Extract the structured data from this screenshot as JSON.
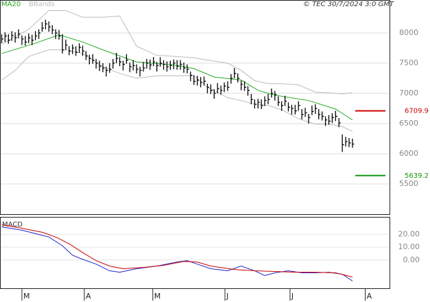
{
  "chart_data": [
    {
      "type": "ohlc",
      "legend_position": "top left",
      "copyright": "© TEC 30/7/2024 3:0 GMT",
      "xlim": [
        -0.5,
        115
      ],
      "ylim": [
        5000,
        8500
      ],
      "yticks": [
        5500,
        6000,
        6500,
        7000,
        7500,
        8000
      ],
      "grid": true,
      "bars": {
        "color": "#000000",
        "high": [
          7980,
          8010,
          7980,
          8030,
          8010,
          8060,
          7960,
          7950,
          7990,
          7970,
          8030,
          8060,
          8180,
          8220,
          8190,
          8130,
          8060,
          8050,
          7980,
          7890,
          7780,
          7810,
          7780,
          7830,
          7790,
          7700,
          7640,
          7650,
          7570,
          7540,
          7500,
          7440,
          7500,
          7570,
          7670,
          7600,
          7540,
          7650,
          7510,
          7550,
          7480,
          7440,
          7520,
          7570,
          7560,
          7600,
          7520,
          7600,
          7550,
          7530,
          7540,
          7560,
          7550,
          7550,
          7510,
          7480,
          7360,
          7300,
          7290,
          7270,
          7280,
          7160,
          7150,
          7070,
          7170,
          7130,
          7180,
          7200,
          7320,
          7420,
          7330,
          7210,
          7200,
          7120,
          6990,
          6900,
          6910,
          6900,
          6950,
          6990,
          7080,
          7040,
          6950,
          6870,
          6960,
          6850,
          6810,
          6810,
          6870,
          6740,
          6760,
          6660,
          6800,
          6820,
          6740,
          6700,
          6620,
          6640,
          6670,
          6710,
          6590,
          6320,
          6280,
          6260,
          6250
        ],
        "low": [
          7830,
          7850,
          7820,
          7870,
          7840,
          7910,
          7800,
          7790,
          7830,
          7800,
          7880,
          7900,
          8020,
          8060,
          8020,
          7980,
          7900,
          7890,
          7660,
          7720,
          7630,
          7650,
          7620,
          7670,
          7620,
          7550,
          7480,
          7490,
          7410,
          7370,
          7350,
          7280,
          7340,
          7410,
          7500,
          7450,
          7380,
          7490,
          7350,
          7380,
          7330,
          7280,
          7360,
          7410,
          7390,
          7450,
          7360,
          7440,
          7390,
          7360,
          7390,
          7400,
          7390,
          7390,
          7340,
          7330,
          7200,
          7140,
          7130,
          7100,
          7130,
          7000,
          6990,
          6910,
          7000,
          6980,
          7020,
          7040,
          7160,
          7250,
          7180,
          7050,
          7040,
          6960,
          6820,
          6750,
          6750,
          6740,
          6790,
          6820,
          6930,
          6880,
          6790,
          6710,
          6790,
          6700,
          6650,
          6650,
          6710,
          6570,
          6610,
          6500,
          6640,
          6660,
          6570,
          6550,
          6460,
          6480,
          6510,
          6540,
          6440,
          6030,
          6120,
          6110,
          6100
        ],
        "close": [
          7900,
          7950,
          7880,
          7960,
          7920,
          7980,
          7900,
          7850,
          7920,
          7880,
          7950,
          8000,
          8080,
          8150,
          8100,
          8050,
          8000,
          7950,
          7720,
          7800,
          7700,
          7750,
          7680,
          7760,
          7700,
          7620,
          7580,
          7550,
          7500,
          7450,
          7420,
          7380,
          7400,
          7500,
          7580,
          7520,
          7480,
          7550,
          7440,
          7460,
          7400,
          7380,
          7420,
          7500,
          7470,
          7520,
          7460,
          7500,
          7480,
          7440,
          7460,
          7500,
          7450,
          7480,
          7420,
          7400,
          7300,
          7200,
          7220,
          7180,
          7200,
          7100,
          7050,
          7000,
          7080,
          7050,
          7120,
          7100,
          7250,
          7330,
          7250,
          7150,
          7100,
          7050,
          6900,
          6820,
          6850,
          6800,
          6880,
          6900,
          7000,
          6980,
          6850,
          6800,
          6870,
          6770,
          6750,
          6710,
          6800,
          6650,
          6680,
          6600,
          6700,
          6750,
          6650,
          6620,
          6560,
          6540,
          6600,
          6620,
          6510,
          6150,
          6200,
          6180,
          6160
        ]
      },
      "series": [
        {
          "name": "MA20",
          "color": "#22aa22",
          "x": [
            0,
            10,
            17,
            24,
            30,
            40,
            51,
            57,
            63,
            71,
            76,
            81,
            91,
            99,
            104
          ],
          "values": [
            7660,
            7830,
            7970,
            7850,
            7720,
            7520,
            7470,
            7410,
            7270,
            7220,
            7050,
            6970,
            6880,
            6740,
            6560
          ]
        },
        {
          "name": "BBands",
          "color": "#bbbbbb",
          "x": [
            0,
            4,
            8,
            14,
            19,
            24,
            30,
            35,
            40,
            46,
            52,
            57,
            61,
            67,
            71,
            75,
            79,
            83,
            88,
            93,
            97,
            101,
            104
          ],
          "upper": [
            7810,
            7940,
            8060,
            8370,
            8370,
            8260,
            8260,
            8280,
            7780,
            7630,
            7610,
            7590,
            7550,
            7500,
            7380,
            7210,
            7160,
            7160,
            7140,
            7020,
            7010,
            6990,
            7010
          ],
          "lower": [
            7220,
            7380,
            7610,
            7720,
            7720,
            7660,
            7440,
            7330,
            7250,
            7290,
            7290,
            7290,
            7100,
            6930,
            6880,
            6820,
            6800,
            6730,
            6580,
            6490,
            6490,
            6450,
            6370
          ]
        }
      ],
      "levels": [
        {
          "value": 6709.9,
          "label": "6709.9",
          "color": "#cc0000"
        },
        {
          "value": 5639.2,
          "label": "5639.2",
          "color": "#119911"
        }
      ]
    },
    {
      "type": "line",
      "title": "MACD",
      "xlim": [
        -0.5,
        115
      ],
      "ylim": [
        -22,
        33
      ],
      "yticks": [
        {
          "value": 0,
          "label": "0.00"
        },
        {
          "value": 10,
          "label": "10.00"
        },
        {
          "value": 20,
          "label": "20.00"
        }
      ],
      "xticks": [
        {
          "value": 6,
          "label": "M"
        },
        {
          "value": 24.5,
          "label": "A"
        },
        {
          "value": 44.8,
          "label": "M"
        },
        {
          "value": 66.2,
          "label": "J"
        },
        {
          "value": 85.5,
          "label": "J"
        },
        {
          "value": 107.8,
          "label": "A"
        }
      ],
      "series": [
        {
          "color": "#2222cc",
          "x": [
            0,
            6,
            10,
            14,
            18,
            21,
            24,
            28,
            32,
            35,
            40,
            46,
            52,
            55,
            58,
            62,
            67,
            71,
            75,
            78,
            81,
            85,
            89,
            93,
            97,
            101,
            104
          ],
          "values": [
            25.8,
            23.2,
            20.5,
            17.9,
            11.1,
            3.7,
            0.5,
            -3.2,
            -8.4,
            -9.5,
            -6.8,
            -4.7,
            -1.6,
            -0.5,
            -3.2,
            -6.8,
            -8.4,
            -4.7,
            -8.4,
            -12.1,
            -10,
            -8.4,
            -10,
            -10,
            -9.5,
            -11.1,
            -16.3
          ]
        },
        {
          "color": "#cc0000",
          "x": [
            0,
            6,
            12,
            16,
            20,
            24,
            28,
            32,
            36,
            42,
            48,
            54,
            58,
            62,
            69,
            75,
            81,
            87,
            93,
            99,
            104
          ],
          "values": [
            27.4,
            24.7,
            21.6,
            17.9,
            12.6,
            5.8,
            -0.5,
            -4.7,
            -6.8,
            -5.8,
            -4.2,
            -1.1,
            -1.6,
            -4.7,
            -7.4,
            -8.4,
            -8.9,
            -9.5,
            -9.5,
            -10,
            -13.2
          ]
        }
      ]
    }
  ]
}
